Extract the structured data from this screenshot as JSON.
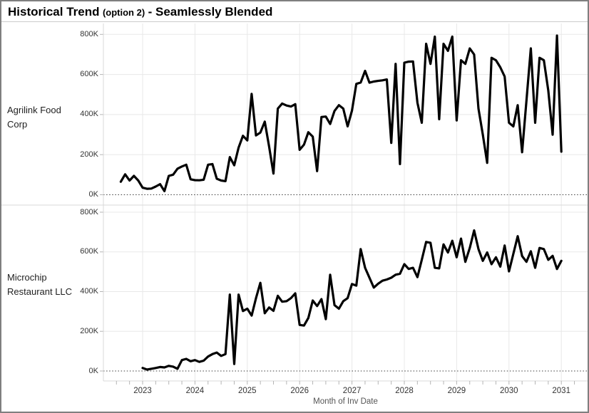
{
  "title": {
    "main": "Historical Trend",
    "option": "(option 2)",
    "suffix": " - Seamlessly Blended"
  },
  "y_axis": {
    "tick_labels": [
      "0K",
      "200K",
      "400K",
      "600K",
      "800K"
    ],
    "tick_values_thousands": [
      0,
      200,
      400,
      600,
      800
    ]
  },
  "x_axis": {
    "label": "Month of Inv Date",
    "tick_years": [
      "2023",
      "2024",
      "2025",
      "2026",
      "2027",
      "2028",
      "2029",
      "2030",
      "2031"
    ]
  },
  "colors": {
    "line": "#000000",
    "grid": "#e8e8e8",
    "zero_line": "#3c3c3c",
    "panel_divider": "#d8d8d8",
    "axis_line": "#d8d8d8",
    "tick_mark": "#b5b5b5",
    "window_border": "#7f7f7f",
    "title_text": "#000000"
  },
  "chart_data": [
    {
      "type": "line",
      "row_label": "Agrilink Food Corp",
      "series_name": "Agrilink Food Corp",
      "xlabel": "Month of Inv Date",
      "x_start": "2022-08",
      "x_step": "1 month",
      "ylim_thousands": [
        0,
        800
      ],
      "grid": true,
      "values_thousands": [
        65,
        102,
        71,
        94,
        71,
        35,
        30,
        31,
        41,
        53,
        18,
        94,
        100,
        130,
        141,
        150,
        77,
        73,
        72,
        75,
        150,
        153,
        80,
        71,
        68,
        188,
        147,
        235,
        294,
        271,
        503,
        296,
        310,
        365,
        240,
        106,
        430,
        455,
        445,
        440,
        452,
        224,
        250,
        312,
        290,
        118,
        388,
        390,
        353,
        418,
        447,
        430,
        341,
        420,
        553,
        560,
        618,
        559,
        565,
        568,
        571,
        575,
        259,
        653,
        153,
        659,
        664,
        665,
        459,
        359,
        753,
        653,
        789,
        377,
        753,
        718,
        789,
        371,
        671,
        653,
        730,
        700,
        430,
        300,
        159,
        683,
        671,
        636,
        590,
        359,
        341,
        447,
        212,
        470,
        730,
        359,
        683,
        671,
        520,
        300,
        794,
        215
      ]
    },
    {
      "type": "line",
      "row_label": "Microchip Restaurant LLC",
      "series_name": "Microchip Restaurant LLC",
      "xlabel": "Month of Inv Date",
      "x_start": "2023-01",
      "x_step": "1 month",
      "ylim_thousands": [
        0,
        800
      ],
      "grid": true,
      "values_thousands": [
        15,
        7,
        11,
        15,
        20,
        18,
        26,
        22,
        11,
        55,
        61,
        49,
        55,
        46,
        52,
        73,
        85,
        93,
        76,
        85,
        385,
        35,
        385,
        302,
        314,
        279,
        367,
        444,
        291,
        320,
        303,
        379,
        349,
        352,
        367,
        391,
        232,
        229,
        267,
        355,
        327,
        362,
        261,
        485,
        332,
        314,
        352,
        367,
        438,
        430,
        614,
        520,
        470,
        420,
        440,
        455,
        461,
        470,
        485,
        490,
        538,
        514,
        520,
        473,
        560,
        650,
        646,
        520,
        517,
        638,
        597,
        656,
        573,
        667,
        550,
        620,
        708,
        614,
        555,
        597,
        538,
        573,
        526,
        632,
        502,
        590,
        679,
        579,
        550,
        603,
        520,
        620,
        614,
        560,
        580,
        514,
        555
      ]
    }
  ]
}
